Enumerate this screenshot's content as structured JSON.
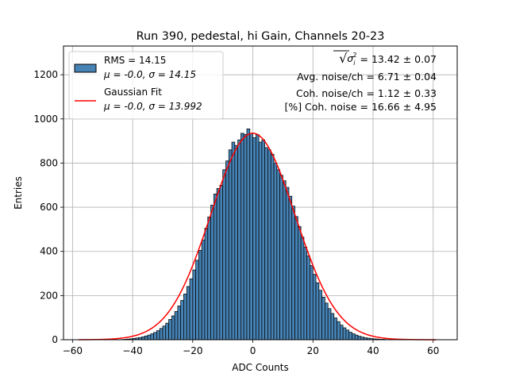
{
  "chart_data": {
    "type": "bar",
    "title": "Run 390, pedestal, hi Gain, Channels 20-23",
    "xlabel": "ADC Counts",
    "ylabel": "Entries",
    "xlim": [
      -63,
      68
    ],
    "ylim": [
      0,
      1330
    ],
    "xticks": [
      -60,
      -40,
      -20,
      0,
      20,
      40,
      60
    ],
    "yticks": [
      0,
      200,
      400,
      600,
      800,
      1000,
      1200
    ],
    "grid": true,
    "legend_position": "top-left",
    "bin_width": 1,
    "bin_start": -58,
    "series": [
      {
        "name": "RMS = 14.15",
        "name_line2": "μ = -0.0, σ = 14.15",
        "type": "histogram",
        "color": "#4682b4",
        "edgecolor": "#000000",
        "values": [
          0,
          0,
          0,
          0,
          0,
          0,
          0,
          0,
          0,
          0,
          0,
          0,
          0,
          0,
          1,
          2,
          3,
          4,
          6,
          8,
          10,
          13,
          17,
          21,
          27,
          33,
          41,
          51,
          62,
          75,
          92,
          108,
          128,
          153,
          178,
          207,
          241,
          276,
          316,
          360,
          405,
          452,
          505,
          556,
          610,
          660,
          685,
          700,
          770,
          810,
          860,
          895,
          880,
          905,
          935,
          930,
          955,
          935,
          915,
          930,
          895,
          905,
          870,
          860,
          840,
          800,
          770,
          745,
          720,
          690,
          650,
          605,
          558,
          513,
          465,
          420,
          380,
          336,
          296,
          258,
          224,
          193,
          166,
          141,
          119,
          99,
          82,
          66,
          54,
          44,
          34,
          27,
          21,
          16,
          12,
          9,
          7,
          5,
          4,
          3,
          2,
          2,
          1,
          1,
          1,
          1,
          0,
          0,
          0,
          0,
          0,
          0,
          0,
          0,
          0,
          0,
          0,
          0,
          0,
          0
        ]
      },
      {
        "name": "Gaussian Fit",
        "name_line2": "μ = -0.0, σ = 13.992",
        "type": "line",
        "color": "#ff0000",
        "mu": 0.0,
        "sigma": 13.992,
        "amplitude": 935,
        "x_range": [
          -58,
          61
        ]
      }
    ],
    "annotations": [
      {
        "prefix": "√",
        "symbol": "σ",
        "sub": "i",
        "sup": "2",
        "text": " = 13.42 ± 0.07"
      },
      {
        "text": "Avg. noise/ch = 6.71 ± 0.04"
      },
      {
        "text": "Coh. noise/ch = 1.12 ± 0.33"
      },
      {
        "text": "[%] Coh. noise = 16.66 ± 4.95"
      }
    ]
  }
}
